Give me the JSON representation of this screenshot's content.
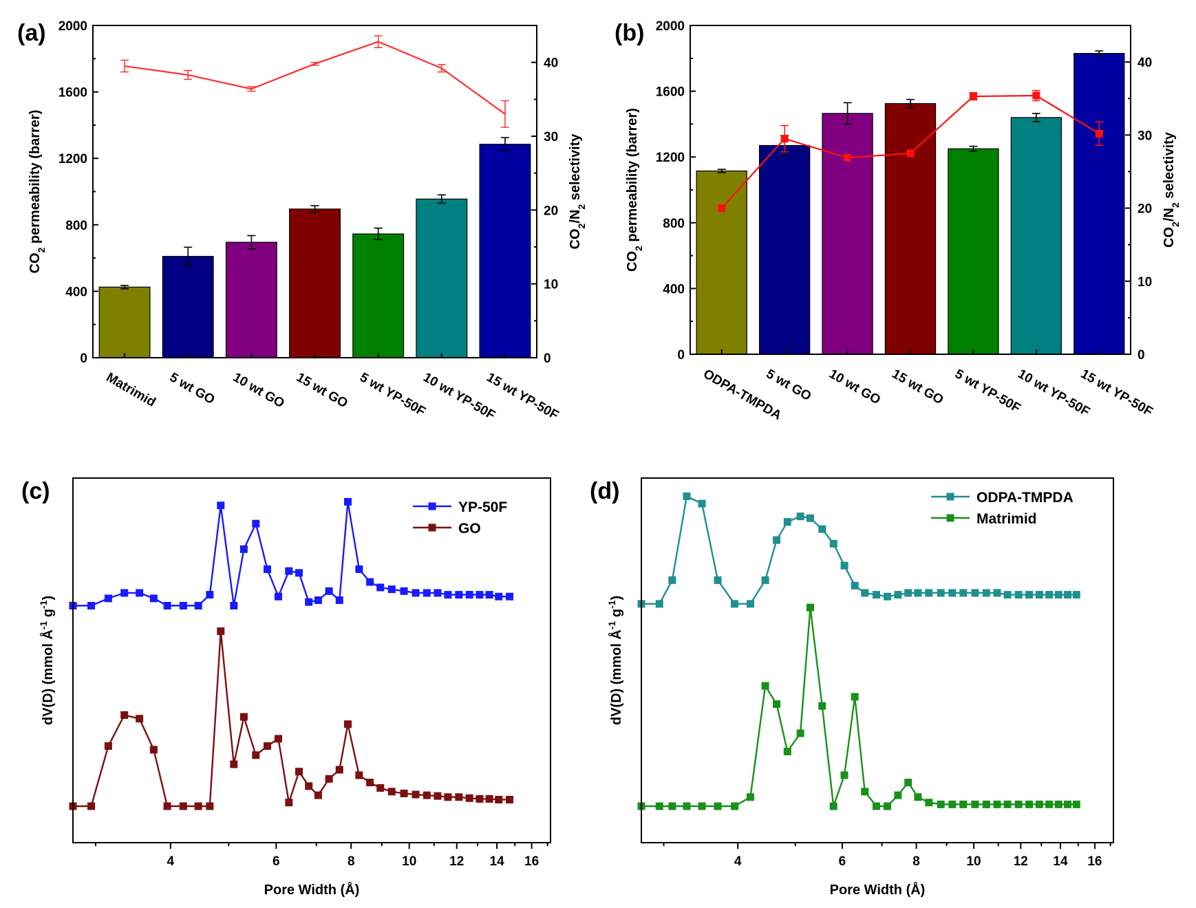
{
  "chart_data": [
    {
      "panel": "(a)",
      "type": "bar",
      "categories": [
        "Matrimid",
        "5 wt GO",
        "10 wt GO",
        "15 wt GO",
        "5 wt YP-50F",
        "10 wt YP-50F",
        "15 wt YP-50F"
      ],
      "series": [
        {
          "name": "CO2 permeability",
          "axis": "left",
          "type": "bar",
          "values": [
            425,
            610,
            695,
            895,
            745,
            955,
            1285
          ],
          "errors": [
            10,
            55,
            40,
            20,
            35,
            25,
            40
          ]
        },
        {
          "name": "CO2/N2 selectivity",
          "axis": "right",
          "type": "line",
          "values": [
            39.5,
            38.3,
            36.4,
            39.8,
            42.8,
            39.2,
            33.0
          ],
          "errors": [
            0.8,
            0.6,
            0.3,
            0.2,
            0.8,
            0.5,
            1.8
          ]
        }
      ],
      "bar_colors": [
        "#808000",
        "#000080",
        "#800080",
        "#800000",
        "#008000",
        "#008080",
        "#0000a0"
      ],
      "line_color": "#ff3030",
      "ylabel": "CO2 permeability (barrer)",
      "y2label": "CO2/N2 selectivity",
      "ylim": [
        0,
        2000
      ],
      "yticks": [
        0,
        400,
        800,
        1200,
        1600,
        2000
      ],
      "y2lim": [
        0,
        45
      ],
      "y2ticks": [
        0,
        10,
        20,
        30,
        40
      ]
    },
    {
      "panel": "(b)",
      "type": "bar",
      "categories": [
        "ODPA-TMPDA",
        "5 wt GO",
        "10 wt GO",
        "15 wt GO",
        "5 wt YP-50F",
        "10 wt YP-50F",
        "15 wt YP-50F"
      ],
      "series": [
        {
          "name": "CO2 permeability",
          "axis": "left",
          "type": "bar",
          "values": [
            1115,
            1270,
            1465,
            1525,
            1250,
            1440,
            1830
          ],
          "errors": [
            10,
            60,
            65,
            25,
            15,
            25,
            15
          ]
        },
        {
          "name": "CO2/N2 selectivity",
          "axis": "right",
          "type": "line",
          "values": [
            20.0,
            29.5,
            26.9,
            27.5,
            35.3,
            35.4,
            30.2
          ],
          "errors": [
            0,
            1.8,
            0,
            0,
            0.5,
            0.7,
            1.6
          ]
        }
      ],
      "bar_colors": [
        "#808000",
        "#000080",
        "#800080",
        "#800000",
        "#008000",
        "#008080",
        "#0000a0"
      ],
      "line_color": "#ff1010",
      "ylabel": "CO2 permeability (barrer)",
      "y2label": "CO2/N2 selectivity",
      "ylim": [
        0,
        2000
      ],
      "yticks": [
        0,
        400,
        800,
        1200,
        1600,
        2000
      ],
      "y2lim": [
        0,
        45
      ],
      "y2ticks": [
        0,
        10,
        20,
        30,
        40
      ]
    },
    {
      "panel": "(c)",
      "type": "line",
      "xlabel": "Pore Width (Å)",
      "ylabel": "dV(D) (mmol Å-1 g-1)",
      "xscale": "log",
      "xlim": [
        2.75,
        17.2
      ],
      "xticks": [
        4,
        6,
        8,
        10,
        12,
        14,
        16
      ],
      "ylim": [
        0,
        1
      ],
      "series": [
        {
          "name": "YP-50F",
          "color": "#1a1aff",
          "x": [
            2.75,
            2.95,
            3.15,
            3.35,
            3.55,
            3.75,
            3.95,
            4.2,
            4.45,
            4.65,
            4.85,
            5.1,
            5.3,
            5.55,
            5.8,
            6.05,
            6.3,
            6.55,
            6.8,
            7.05,
            7.35,
            7.65,
            7.9,
            8.25,
            8.6,
            8.95,
            9.35,
            9.8,
            10.25,
            10.7,
            11.15,
            11.6,
            12.1,
            12.6,
            13.1,
            13.6,
            14.1,
            14.7
          ],
          "y": [
            0.65,
            0.65,
            0.67,
            0.685,
            0.685,
            0.67,
            0.65,
            0.65,
            0.65,
            0.68,
            0.925,
            0.65,
            0.805,
            0.875,
            0.75,
            0.675,
            0.745,
            0.74,
            0.66,
            0.665,
            0.69,
            0.665,
            0.935,
            0.75,
            0.715,
            0.7,
            0.695,
            0.69,
            0.685,
            0.685,
            0.685,
            0.68,
            0.68,
            0.68,
            0.68,
            0.68,
            0.675,
            0.675
          ]
        },
        {
          "name": "GO",
          "color": "#7b1010",
          "x": [
            2.75,
            2.95,
            3.15,
            3.35,
            3.55,
            3.75,
            3.95,
            4.2,
            4.45,
            4.65,
            4.85,
            5.1,
            5.3,
            5.55,
            5.8,
            6.05,
            6.3,
            6.55,
            6.8,
            7.05,
            7.35,
            7.65,
            7.9,
            8.25,
            8.6,
            8.95,
            9.35,
            9.8,
            10.25,
            10.7,
            11.15,
            11.6,
            12.1,
            12.6,
            13.1,
            13.6,
            14.1,
            14.7
          ],
          "y": [
            0.1,
            0.1,
            0.265,
            0.35,
            0.34,
            0.255,
            0.1,
            0.1,
            0.1,
            0.1,
            0.58,
            0.215,
            0.345,
            0.24,
            0.265,
            0.285,
            0.11,
            0.195,
            0.155,
            0.13,
            0.175,
            0.2,
            0.325,
            0.185,
            0.165,
            0.15,
            0.14,
            0.135,
            0.132,
            0.13,
            0.128,
            0.125,
            0.125,
            0.122,
            0.12,
            0.12,
            0.118,
            0.118
          ]
        }
      ]
    },
    {
      "panel": "(d)",
      "type": "line",
      "xlabel": "Pore Width (Å)",
      "ylabel": "dV(D) (mmol Å-1 g-1)",
      "xscale": "log",
      "xlim": [
        2.75,
        17.2
      ],
      "xticks": [
        4,
        6,
        8,
        10,
        12,
        14,
        16
      ],
      "ylim": [
        0,
        1
      ],
      "series": [
        {
          "name": "ODPA-TMPDA",
          "color": "#1f8f8f",
          "x": [
            2.75,
            2.95,
            3.1,
            3.28,
            3.48,
            3.7,
            3.95,
            4.2,
            4.45,
            4.65,
            4.85,
            5.1,
            5.3,
            5.55,
            5.8,
            6.05,
            6.3,
            6.55,
            6.85,
            7.15,
            7.45,
            7.75,
            8.05,
            8.4,
            8.8,
            9.2,
            9.6,
            10.05,
            10.5,
            10.95,
            11.4,
            11.9,
            12.4,
            12.9,
            13.4,
            13.9,
            14.4,
            14.9
          ],
          "y": [
            0.655,
            0.655,
            0.72,
            0.95,
            0.93,
            0.72,
            0.655,
            0.655,
            0.72,
            0.83,
            0.88,
            0.895,
            0.89,
            0.86,
            0.82,
            0.76,
            0.705,
            0.685,
            0.68,
            0.675,
            0.68,
            0.685,
            0.685,
            0.685,
            0.685,
            0.685,
            0.685,
            0.685,
            0.685,
            0.685,
            0.68,
            0.68,
            0.68,
            0.68,
            0.68,
            0.68,
            0.68,
            0.68
          ]
        },
        {
          "name": "Matrimid",
          "color": "#199019",
          "x": [
            2.75,
            2.95,
            3.1,
            3.28,
            3.48,
            3.7,
            3.95,
            4.2,
            4.45,
            4.65,
            4.85,
            5.1,
            5.3,
            5.55,
            5.8,
            6.05,
            6.3,
            6.55,
            6.85,
            7.15,
            7.45,
            7.75,
            8.05,
            8.4,
            8.8,
            9.2,
            9.6,
            10.05,
            10.5,
            10.95,
            11.4,
            11.9,
            12.4,
            12.9,
            13.4,
            13.9,
            14.4,
            14.9
          ],
          "y": [
            0.1,
            0.1,
            0.1,
            0.1,
            0.1,
            0.1,
            0.1,
            0.125,
            0.43,
            0.38,
            0.25,
            0.3,
            0.645,
            0.375,
            0.1,
            0.185,
            0.4,
            0.14,
            0.1,
            0.1,
            0.13,
            0.165,
            0.125,
            0.11,
            0.105,
            0.105,
            0.105,
            0.105,
            0.105,
            0.105,
            0.105,
            0.105,
            0.105,
            0.105,
            0.105,
            0.105,
            0.105,
            0.105
          ]
        }
      ]
    }
  ]
}
